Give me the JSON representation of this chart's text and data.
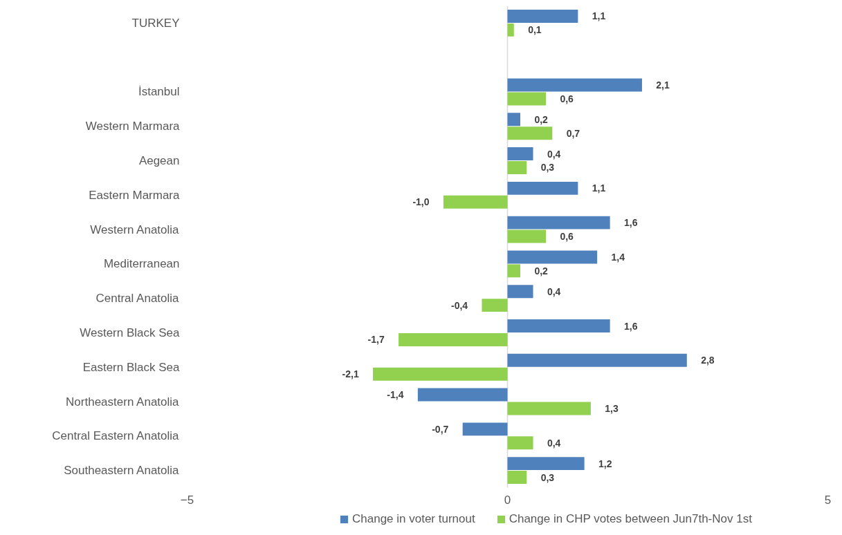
{
  "chart_data": {
    "type": "bar",
    "orientation": "horizontal",
    "categories": [
      "TURKEY",
      null,
      "İstanbul",
      "Western Marmara",
      "Aegean",
      "Eastern Marmara",
      "Western Anatolia",
      "Mediterranean",
      "Central Anatolia",
      "Western Black Sea",
      "Eastern Black Sea",
      "Northeastern Anatolia",
      "Central Eastern Anatolia",
      "Southeastern Anatolia"
    ],
    "series": [
      {
        "name": "Change in voter turnout",
        "color": "#4f81bd",
        "values": [
          1.1,
          null,
          2.1,
          0.2,
          0.4,
          1.1,
          1.6,
          1.4,
          0.4,
          1.6,
          2.8,
          -1.4,
          -0.7,
          1.2
        ],
        "value_labels": [
          "1,1",
          null,
          "2,1",
          "0,2",
          "0,4",
          "1,1",
          "1,6",
          "1,4",
          "0,4",
          "1,6",
          "2,8",
          "-1,4",
          "-0,7",
          "1,2"
        ]
      },
      {
        "name": "Change in CHP votes between Jun7th-Nov 1st",
        "color": "#92d050",
        "values": [
          0.1,
          null,
          0.6,
          0.7,
          0.3,
          -1.0,
          0.6,
          0.2,
          -0.4,
          -1.7,
          -2.1,
          1.3,
          0.4,
          0.3
        ],
        "value_labels": [
          "0,1",
          null,
          "0,6",
          "0,7",
          "0,3",
          "-1,0",
          "0,6",
          "0,2",
          "-0,4",
          "-1,7",
          "-2,1",
          "1,3",
          "0,4",
          "0,3"
        ]
      }
    ],
    "xlim": [
      -5,
      5
    ],
    "xticks": [
      -5,
      0,
      5
    ],
    "grid": "x",
    "legend": "bottom"
  }
}
